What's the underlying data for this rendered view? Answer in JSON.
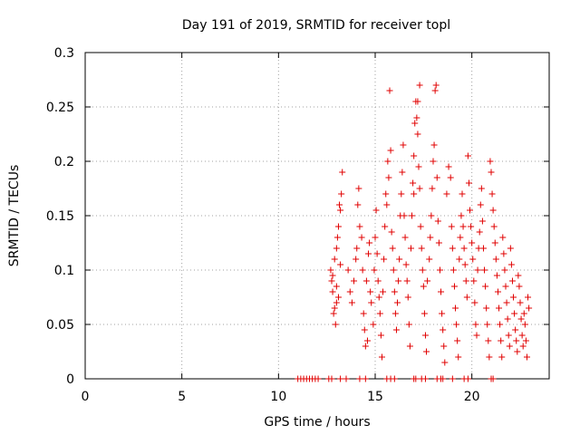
{
  "chart_data": {
    "type": "scatter",
    "title": "Day 191 of 2019, SRMTID for receiver topl",
    "xlabel": "GPS time / hours",
    "ylabel": "SRMTID / TECUs",
    "xlim": [
      0,
      24
    ],
    "ylim": [
      0,
      0.3
    ],
    "x_ticks": [
      0,
      5,
      10,
      15,
      20
    ],
    "y_ticks": [
      0,
      0.05,
      0.1,
      0.15,
      0.2,
      0.25,
      0.3
    ],
    "x_tick_labels": [
      "0",
      "5",
      "10",
      "15",
      "20"
    ],
    "y_tick_labels": [
      "0",
      "0.05",
      "0.1",
      "0.15",
      "0.2",
      "0.25",
      "0.3"
    ],
    "grid": true,
    "marker": "plus",
    "color": "#e00000",
    "series": [
      {
        "points": [
          [
            11.0,
            0
          ],
          [
            11.15,
            0
          ],
          [
            11.3,
            0
          ],
          [
            11.45,
            0
          ],
          [
            11.6,
            0
          ],
          [
            11.75,
            0
          ],
          [
            11.9,
            0
          ],
          [
            12.05,
            0
          ],
          [
            12.6,
            0
          ],
          [
            12.75,
            0
          ],
          [
            13.2,
            0
          ],
          [
            13.5,
            0
          ],
          [
            14.2,
            0
          ],
          [
            14.5,
            0
          ],
          [
            15.6,
            0
          ],
          [
            15.8,
            0
          ],
          [
            16.0,
            0
          ],
          [
            17.0,
            0
          ],
          [
            17.1,
            0
          ],
          [
            17.4,
            0
          ],
          [
            17.6,
            0
          ],
          [
            18.2,
            0
          ],
          [
            18.4,
            0
          ],
          [
            18.5,
            0
          ],
          [
            19.0,
            0
          ],
          [
            19.6,
            0
          ],
          [
            19.8,
            0
          ],
          [
            21.0,
            0
          ],
          [
            21.1,
            0
          ],
          [
            12.7,
            0.1
          ],
          [
            12.75,
            0.09
          ],
          [
            12.8,
            0.08
          ],
          [
            12.85,
            0.06
          ],
          [
            12.9,
            0.065
          ],
          [
            12.95,
            0.05
          ],
          [
            13.0,
            0.07
          ],
          [
            12.8,
            0.095
          ],
          [
            12.9,
            0.11
          ],
          [
            13.0,
            0.12
          ],
          [
            13.05,
            0.13
          ],
          [
            13.1,
            0.14
          ],
          [
            13.15,
            0.16
          ],
          [
            13.2,
            0.155
          ],
          [
            13.25,
            0.17
          ],
          [
            13.3,
            0.19
          ],
          [
            13.0,
            0.085
          ],
          [
            13.1,
            0.075
          ],
          [
            13.2,
            0.105
          ],
          [
            13.6,
            0.1
          ],
          [
            13.7,
            0.08
          ],
          [
            13.8,
            0.07
          ],
          [
            13.9,
            0.09
          ],
          [
            14.0,
            0.11
          ],
          [
            14.05,
            0.12
          ],
          [
            14.1,
            0.16
          ],
          [
            14.15,
            0.175
          ],
          [
            14.2,
            0.14
          ],
          [
            14.3,
            0.13
          ],
          [
            14.35,
            0.1
          ],
          [
            14.4,
            0.06
          ],
          [
            14.45,
            0.045
          ],
          [
            14.5,
            0.03
          ],
          [
            14.6,
            0.035
          ],
          [
            14.55,
            0.09
          ],
          [
            14.65,
            0.115
          ],
          [
            14.7,
            0.125
          ],
          [
            14.75,
            0.08
          ],
          [
            14.8,
            0.07
          ],
          [
            14.9,
            0.05
          ],
          [
            14.95,
            0.1
          ],
          [
            15.0,
            0.13
          ],
          [
            15.05,
            0.155
          ],
          [
            15.1,
            0.115
          ],
          [
            15.15,
            0.09
          ],
          [
            15.2,
            0.075
          ],
          [
            15.25,
            0.06
          ],
          [
            15.3,
            0.04
          ],
          [
            15.35,
            0.02
          ],
          [
            15.4,
            0.08
          ],
          [
            15.45,
            0.11
          ],
          [
            15.5,
            0.14
          ],
          [
            15.55,
            0.17
          ],
          [
            15.6,
            0.16
          ],
          [
            15.65,
            0.2
          ],
          [
            15.7,
            0.185
          ],
          [
            15.75,
            0.265
          ],
          [
            15.8,
            0.21
          ],
          [
            15.85,
            0.135
          ],
          [
            15.9,
            0.12
          ],
          [
            15.95,
            0.1
          ],
          [
            16.0,
            0.08
          ],
          [
            16.05,
            0.06
          ],
          [
            16.1,
            0.045
          ],
          [
            16.15,
            0.07
          ],
          [
            16.2,
            0.09
          ],
          [
            16.25,
            0.11
          ],
          [
            16.3,
            0.15
          ],
          [
            16.35,
            0.17
          ],
          [
            16.4,
            0.19
          ],
          [
            16.45,
            0.215
          ],
          [
            16.5,
            0.15
          ],
          [
            16.55,
            0.13
          ],
          [
            16.6,
            0.105
          ],
          [
            16.65,
            0.09
          ],
          [
            16.7,
            0.075
          ],
          [
            16.75,
            0.05
          ],
          [
            16.8,
            0.03
          ],
          [
            16.85,
            0.12
          ],
          [
            16.9,
            0.15
          ],
          [
            16.95,
            0.18
          ],
          [
            17.0,
            0.205
          ],
          [
            17.05,
            0.235
          ],
          [
            17.1,
            0.255
          ],
          [
            17.15,
            0.24
          ],
          [
            17.2,
            0.225
          ],
          [
            17.25,
            0.195
          ],
          [
            17.3,
            0.175
          ],
          [
            17.35,
            0.14
          ],
          [
            17.4,
            0.12
          ],
          [
            17.45,
            0.1
          ],
          [
            17.5,
            0.085
          ],
          [
            17.55,
            0.06
          ],
          [
            17.6,
            0.04
          ],
          [
            17.65,
            0.025
          ],
          [
            17.3,
            0.27
          ],
          [
            17.2,
            0.255
          ],
          [
            17.0,
            0.17
          ],
          [
            17.7,
            0.09
          ],
          [
            17.8,
            0.11
          ],
          [
            17.85,
            0.13
          ],
          [
            17.9,
            0.15
          ],
          [
            17.95,
            0.175
          ],
          [
            18.0,
            0.2
          ],
          [
            18.05,
            0.215
          ],
          [
            18.1,
            0.265
          ],
          [
            18.15,
            0.27
          ],
          [
            18.2,
            0.185
          ],
          [
            18.25,
            0.145
          ],
          [
            18.3,
            0.125
          ],
          [
            18.35,
            0.1
          ],
          [
            18.4,
            0.08
          ],
          [
            18.45,
            0.06
          ],
          [
            18.5,
            0.045
          ],
          [
            18.55,
            0.03
          ],
          [
            18.6,
            0.015
          ],
          [
            18.7,
            0.17
          ],
          [
            18.8,
            0.195
          ],
          [
            18.9,
            0.185
          ],
          [
            18.95,
            0.14
          ],
          [
            19.0,
            0.12
          ],
          [
            19.05,
            0.1
          ],
          [
            19.1,
            0.085
          ],
          [
            19.15,
            0.065
          ],
          [
            19.2,
            0.05
          ],
          [
            19.25,
            0.035
          ],
          [
            19.3,
            0.02
          ],
          [
            19.35,
            0.11
          ],
          [
            19.4,
            0.13
          ],
          [
            19.45,
            0.15
          ],
          [
            19.5,
            0.17
          ],
          [
            19.55,
            0.14
          ],
          [
            19.6,
            0.12
          ],
          [
            19.65,
            0.105
          ],
          [
            19.7,
            0.09
          ],
          [
            19.75,
            0.075
          ],
          [
            19.8,
            0.205
          ],
          [
            19.85,
            0.18
          ],
          [
            19.9,
            0.155
          ],
          [
            19.95,
            0.14
          ],
          [
            20.0,
            0.125
          ],
          [
            20.05,
            0.11
          ],
          [
            20.1,
            0.09
          ],
          [
            20.15,
            0.07
          ],
          [
            20.2,
            0.05
          ],
          [
            20.25,
            0.04
          ],
          [
            20.3,
            0.1
          ],
          [
            20.35,
            0.12
          ],
          [
            20.4,
            0.135
          ],
          [
            20.45,
            0.16
          ],
          [
            20.5,
            0.175
          ],
          [
            20.55,
            0.145
          ],
          [
            20.6,
            0.12
          ],
          [
            20.65,
            0.1
          ],
          [
            20.7,
            0.085
          ],
          [
            20.75,
            0.065
          ],
          [
            20.8,
            0.05
          ],
          [
            20.85,
            0.035
          ],
          [
            20.9,
            0.02
          ],
          [
            20.95,
            0.2
          ],
          [
            21.0,
            0.19
          ],
          [
            21.05,
            0.17
          ],
          [
            21.1,
            0.155
          ],
          [
            21.15,
            0.14
          ],
          [
            21.2,
            0.125
          ],
          [
            21.25,
            0.11
          ],
          [
            21.3,
            0.095
          ],
          [
            21.35,
            0.08
          ],
          [
            21.4,
            0.065
          ],
          [
            21.45,
            0.05
          ],
          [
            21.5,
            0.035
          ],
          [
            21.55,
            0.02
          ],
          [
            21.6,
            0.13
          ],
          [
            21.65,
            0.115
          ],
          [
            21.7,
            0.1
          ],
          [
            21.75,
            0.085
          ],
          [
            21.8,
            0.07
          ],
          [
            21.85,
            0.055
          ],
          [
            21.9,
            0.04
          ],
          [
            21.95,
            0.03
          ],
          [
            22.0,
            0.12
          ],
          [
            22.05,
            0.105
          ],
          [
            22.1,
            0.09
          ],
          [
            22.15,
            0.075
          ],
          [
            22.2,
            0.06
          ],
          [
            22.25,
            0.045
          ],
          [
            22.3,
            0.035
          ],
          [
            22.35,
            0.025
          ],
          [
            22.4,
            0.095
          ],
          [
            22.45,
            0.085
          ],
          [
            22.5,
            0.07
          ],
          [
            22.55,
            0.055
          ],
          [
            22.6,
            0.04
          ],
          [
            22.65,
            0.03
          ],
          [
            22.7,
            0.06
          ],
          [
            22.75,
            0.05
          ],
          [
            22.8,
            0.035
          ],
          [
            22.85,
            0.02
          ],
          [
            22.9,
            0.075
          ],
          [
            22.95,
            0.065
          ]
        ]
      }
    ]
  }
}
